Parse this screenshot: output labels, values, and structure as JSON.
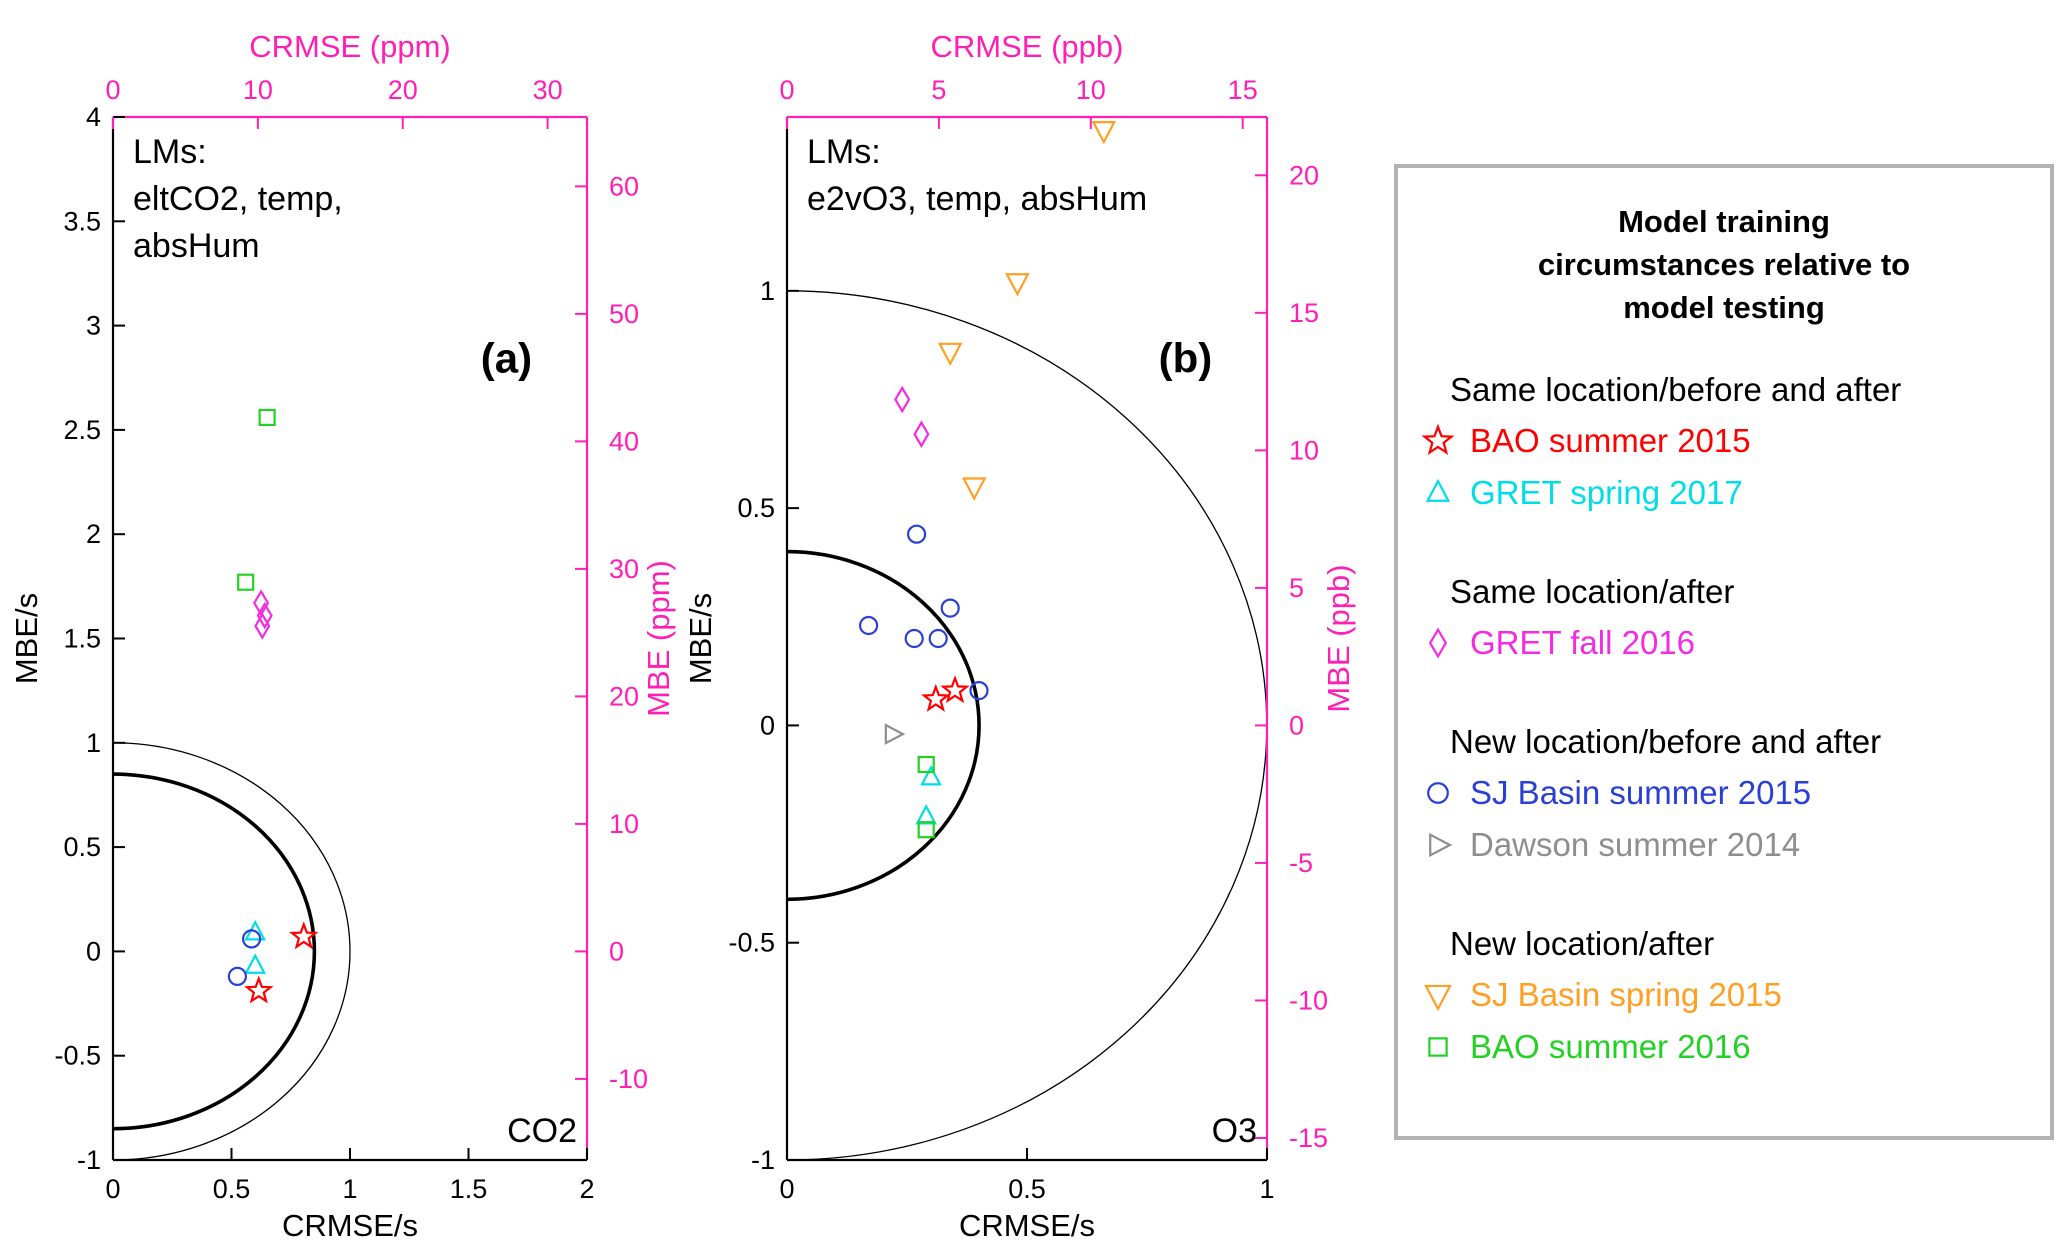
{
  "style": {
    "background": "#ffffff",
    "axis_color": "#000000",
    "secondary_axis_color": "#ff1fb4",
    "legend_border_color": "#b3b3b3"
  },
  "chart_data": [
    {
      "type": "scatter",
      "panel": "a",
      "corner_label": "(a)",
      "annotation_lines": [
        "LMs:",
        "eltCO2, temp,",
        "absHum"
      ],
      "species_label": "CO2",
      "x_axis": {
        "label": "CRMSE/s",
        "min": 0,
        "max": 2,
        "ticks": [
          0,
          0.5,
          1,
          1.5,
          2
        ]
      },
      "y_axis": {
        "label": "MBE/s",
        "min": -1,
        "max": 4,
        "ticks": [
          -1,
          -0.5,
          0,
          0.5,
          1,
          1.5,
          2,
          2.5,
          3,
          3.5,
          4
        ]
      },
      "top_axis": {
        "label": "CRMSE (ppm)",
        "ticks": [
          0,
          10,
          20,
          30
        ],
        "units_per_s": 16.36
      },
      "right_axis": {
        "label": "MBE (ppm)",
        "ticks": [
          -10,
          0,
          10,
          20,
          30,
          40,
          50,
          60
        ],
        "units_per_s": 16.36
      },
      "reference_arcs": [
        {
          "radius": 1.0,
          "stroke_width": 1.3
        },
        {
          "radius": 0.85,
          "stroke_width": 3.6
        }
      ],
      "series": [
        {
          "name": "BAO summer 2015",
          "marker": "star",
          "color": "#ff0000",
          "points": [
            [
              0.805,
              0.07
            ],
            [
              0.615,
              -0.19
            ]
          ]
        },
        {
          "name": "GRET spring 2017",
          "marker": "triangle-up",
          "color": "#00dde8",
          "points": [
            [
              0.6,
              0.09
            ],
            [
              0.6,
              -0.07
            ]
          ]
        },
        {
          "name": "GRET fall 2016",
          "marker": "diamond",
          "color": "#f32be2",
          "points": [
            [
              0.625,
              1.67
            ],
            [
              0.64,
              1.61
            ],
            [
              0.63,
              1.56
            ]
          ]
        },
        {
          "name": "SJ Basin summer 2015",
          "marker": "circle",
          "color": "#2a3fd6",
          "points": [
            [
              0.585,
              0.06
            ],
            [
              0.525,
              -0.12
            ]
          ]
        },
        {
          "name": "BAO summer 2016",
          "marker": "square",
          "color": "#23d123",
          "points": [
            [
              0.65,
              2.56
            ],
            [
              0.56,
              1.77
            ]
          ]
        }
      ]
    },
    {
      "type": "scatter",
      "panel": "b",
      "corner_label": "(b)",
      "annotation_lines": [
        "LMs:",
        "e2vO3, temp, absHum"
      ],
      "species_label": "O3",
      "x_axis": {
        "label": "CRMSE/s",
        "min": 0,
        "max": 1,
        "ticks": [
          0,
          0.5,
          1
        ]
      },
      "y_axis": {
        "label": "MBE/s",
        "min": -1,
        "max": 1.4,
        "ticks": [
          -1,
          -0.5,
          0,
          0.5,
          1
        ]
      },
      "top_axis": {
        "label": "CRMSE (ppb)",
        "ticks": [
          0,
          5,
          10,
          15
        ],
        "units_per_s": 15.8
      },
      "right_axis": {
        "label": "MBE (ppb)",
        "ticks": [
          -15,
          -10,
          -5,
          0,
          5,
          10,
          15,
          20
        ],
        "units_per_s": 15.8
      },
      "reference_arcs": [
        {
          "radius": 1.0,
          "stroke_width": 1.3
        },
        {
          "radius": 0.4,
          "stroke_width": 3.6
        }
      ],
      "series": [
        {
          "name": "BAO summer 2015",
          "marker": "star",
          "color": "#ff0000",
          "points": [
            [
              0.31,
              0.06
            ],
            [
              0.35,
              0.08
            ]
          ]
        },
        {
          "name": "GRET spring 2017",
          "marker": "triangle-up",
          "color": "#00dde8",
          "points": [
            [
              0.3,
              -0.12
            ],
            [
              0.29,
              -0.21
            ]
          ]
        },
        {
          "name": "GRET fall 2016",
          "marker": "diamond",
          "color": "#f32be2",
          "points": [
            [
              0.24,
              0.75
            ],
            [
              0.28,
              0.67
            ]
          ]
        },
        {
          "name": "SJ Basin summer 2015",
          "marker": "circle",
          "color": "#2a3fd6",
          "points": [
            [
              0.27,
              0.44
            ],
            [
              0.34,
              0.27
            ],
            [
              0.17,
              0.23
            ],
            [
              0.265,
              0.2
            ],
            [
              0.315,
              0.2
            ],
            [
              0.4,
              0.08
            ]
          ]
        },
        {
          "name": "Dawson summer 2014",
          "marker": "triangle-right",
          "color": "#8e8e8e",
          "points": [
            [
              0.22,
              -0.02
            ]
          ]
        },
        {
          "name": "SJ Basin spring 2015",
          "marker": "triangle-down",
          "color": "#ff9f24",
          "points": [
            [
              0.66,
              1.37
            ],
            [
              0.48,
              1.02
            ],
            [
              0.34,
              0.86
            ],
            [
              0.39,
              0.55
            ]
          ]
        },
        {
          "name": "BAO summer 2016",
          "marker": "square",
          "color": "#23d123",
          "points": [
            [
              0.29,
              -0.09
            ],
            [
              0.29,
              -0.24
            ]
          ]
        }
      ]
    }
  ],
  "legend": {
    "title_lines": [
      "Model training",
      "circumstances relative to",
      "model testing"
    ],
    "groups": [
      {
        "heading": "Same location/before and after",
        "items": [
          {
            "label": "BAO summer 2015",
            "marker": "star",
            "color": "#ff0000"
          },
          {
            "label": "GRET spring 2017",
            "marker": "triangle-up",
            "color": "#00dde8"
          }
        ]
      },
      {
        "heading": "Same location/after",
        "items": [
          {
            "label": "GRET fall 2016",
            "marker": "diamond",
            "color": "#f32be2"
          }
        ]
      },
      {
        "heading": "New location/before and after",
        "items": [
          {
            "label": "SJ Basin summer 2015",
            "marker": "circle",
            "color": "#2a3fd6"
          },
          {
            "label": "Dawson summer 2014",
            "marker": "triangle-right",
            "color": "#8e8e8e"
          }
        ]
      },
      {
        "heading": "New location/after",
        "items": [
          {
            "label": "SJ Basin spring 2015",
            "marker": "triangle-down",
            "color": "#ff9f24"
          },
          {
            "label": "BAO summer 2016",
            "marker": "square",
            "color": "#23d123"
          }
        ]
      }
    ]
  }
}
